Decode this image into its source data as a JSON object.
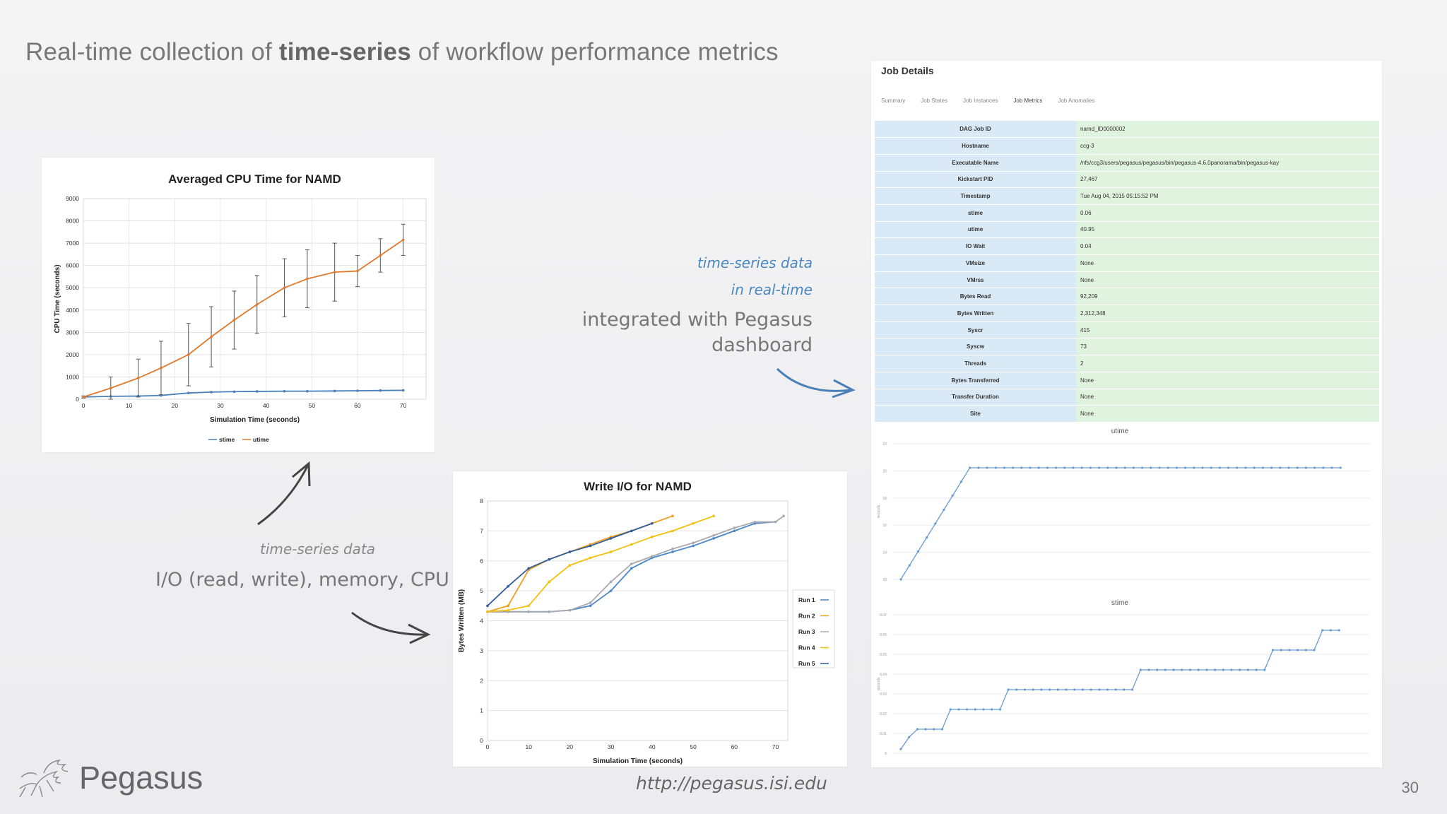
{
  "slide": {
    "title_pre": "Real-time collection of ",
    "title_bold": "time-series",
    "title_post": " of workflow performance metrics",
    "page_number": "30",
    "url": "http://pegasus.isi.edu",
    "logo_text": "Pegasus"
  },
  "annotations": {
    "right_line1": "time-series data",
    "right_line2": "in real-time",
    "right_line3": "integrated with Pegasus",
    "right_line4": "dashboard",
    "left_line1": "time-series data",
    "left_line2": "I/O (read, write), memory, CPU"
  },
  "colors": {
    "stime": "#4a7fb8",
    "utime": "#e07a2f",
    "run1": "#4a86c8",
    "run2": "#f0a020",
    "run3": "#a8a8b0",
    "run4": "#f2c10e",
    "run5": "#2f5f9a",
    "annotation_blue": "#4a88c4",
    "table_key_bg": "#d9e9f6",
    "table_value_bg": "#dff3de"
  },
  "chart_data": [
    {
      "type": "line",
      "title": "Averaged CPU Time for NAMD",
      "xlabel": "Simulation Time (seconds)",
      "ylabel": "CPU Time (seconds)",
      "xlim": [
        0,
        75
      ],
      "ylim": [
        0,
        9000
      ],
      "xticks": [
        "0",
        "10",
        "20",
        "30",
        "40",
        "50",
        "60",
        "70"
      ],
      "yticks": [
        "0",
        "1000",
        "2000",
        "3000",
        "4000",
        "5000",
        "6000",
        "7000",
        "8000",
        "9000"
      ],
      "legend": "bottom",
      "grid": true,
      "series": [
        {
          "name": "stime",
          "x": [
            0,
            6,
            12,
            17,
            23,
            28,
            33,
            38,
            44,
            49,
            55,
            60,
            65,
            70
          ],
          "y": [
            100,
            130,
            140,
            170,
            280,
            320,
            340,
            350,
            360,
            360,
            370,
            380,
            390,
            400
          ]
        },
        {
          "name": "utime",
          "x": [
            0,
            6,
            12,
            17,
            23,
            28,
            33,
            38,
            44,
            49,
            55,
            60,
            65,
            70
          ],
          "y": [
            100,
            500,
            950,
            1400,
            2000,
            2800,
            3550,
            4250,
            5000,
            5400,
            5700,
            5750,
            6450,
            7150
          ],
          "err": [
            50,
            500,
            850,
            1200,
            1400,
            1350,
            1300,
            1300,
            1300,
            1300,
            1300,
            700,
            750,
            700
          ]
        }
      ]
    },
    {
      "type": "line",
      "title": "Write I/O for NAMD",
      "xlabel": "Simulation Time (seconds)",
      "ylabel": "Bytes Written (MB)",
      "xlim": [
        0,
        73
      ],
      "ylim": [
        0,
        8
      ],
      "xticks": [
        "0",
        "10",
        "20",
        "30",
        "40",
        "50",
        "60",
        "70"
      ],
      "yticks": [
        "0",
        "1",
        "2",
        "3",
        "4",
        "5",
        "6",
        "7",
        "8"
      ],
      "legend": "right",
      "grid": true,
      "series": [
        {
          "name": "Run 1",
          "x": [
            0,
            5,
            10,
            15,
            20,
            25,
            30,
            35,
            40,
            45,
            50,
            55,
            60,
            65,
            70
          ],
          "y": [
            4.3,
            4.3,
            4.3,
            4.3,
            4.35,
            4.5,
            5.0,
            5.75,
            6.1,
            6.3,
            6.5,
            6.75,
            7.0,
            7.25,
            7.3
          ]
        },
        {
          "name": "Run 2",
          "x": [
            0,
            5,
            10,
            15,
            20,
            25,
            30,
            35,
            40,
            45
          ],
          "y": [
            4.3,
            4.5,
            5.7,
            6.05,
            6.3,
            6.55,
            6.8,
            7.0,
            7.25,
            7.5
          ]
        },
        {
          "name": "Run 3",
          "x": [
            0,
            5,
            10,
            15,
            20,
            25,
            30,
            35,
            40,
            45,
            50,
            55,
            60,
            65,
            70,
            72
          ],
          "y": [
            4.3,
            4.3,
            4.3,
            4.3,
            4.35,
            4.6,
            5.3,
            5.9,
            6.15,
            6.4,
            6.6,
            6.85,
            7.1,
            7.3,
            7.3,
            7.5
          ]
        },
        {
          "name": "Run 4",
          "x": [
            0,
            5,
            10,
            15,
            20,
            25,
            30,
            35,
            40,
            45,
            50,
            55
          ],
          "y": [
            4.3,
            4.35,
            4.5,
            5.3,
            5.85,
            6.1,
            6.3,
            6.55,
            6.8,
            7.0,
            7.25,
            7.5
          ]
        },
        {
          "name": "Run 5",
          "x": [
            0,
            5,
            10,
            15,
            20,
            25,
            30,
            35,
            40
          ],
          "y": [
            4.5,
            5.15,
            5.75,
            6.05,
            6.3,
            6.5,
            6.75,
            7.0,
            7.25
          ]
        }
      ]
    }
  ],
  "job_details": {
    "title": "Job Details",
    "tabs": [
      "Summary",
      "Job States",
      "Job Instances",
      "Job Metrics",
      "Job Anomalies"
    ],
    "rows": [
      {
        "key": "DAG Job ID",
        "value": "namd_ID0000002"
      },
      {
        "key": "Hostname",
        "value": "ccg-3"
      },
      {
        "key": "Executable Name",
        "value": "/nfs/ccg3/users/pegasus/pegasus/bin/pegasus-4.6.0panorama/bin/pegasus-kay"
      },
      {
        "key": "Kickstart PID",
        "value": "27,467"
      },
      {
        "key": "Timestamp",
        "value": "Tue Aug 04, 2015 05:15:52 PM"
      },
      {
        "key": "stime",
        "value": "0.06"
      },
      {
        "key": "utime",
        "value": "40.95"
      },
      {
        "key": "IO Wait",
        "value": "0.04"
      },
      {
        "key": "VMsize",
        "value": "None"
      },
      {
        "key": "VMrss",
        "value": "None"
      },
      {
        "key": "Bytes Read",
        "value": "92,209"
      },
      {
        "key": "Bytes Written",
        "value": "2,312,348"
      },
      {
        "key": "Syscr",
        "value": "415"
      },
      {
        "key": "Syscw",
        "value": "73"
      },
      {
        "key": "Threads",
        "value": "2"
      },
      {
        "key": "Bytes Transferred",
        "value": "None"
      },
      {
        "key": "Transfer Duration",
        "value": "None"
      },
      {
        "key": "Site",
        "value": "None"
      }
    ],
    "utime_chart": {
      "title": "utime",
      "ylabel": "seconds",
      "yticks": [
        "10",
        "14",
        "16",
        "18",
        "20",
        "22"
      ]
    },
    "stime_chart": {
      "title": "stime",
      "ylabel": "seconds",
      "yticks": [
        "0",
        "0.01",
        "0.02",
        "0.03",
        "0.04",
        "0.05",
        "0.06",
        "0.07"
      ]
    }
  }
}
